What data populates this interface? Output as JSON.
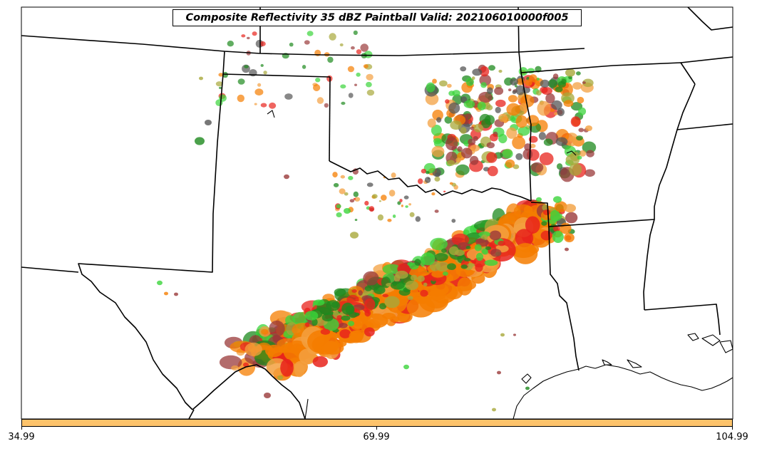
{
  "title": "Composite Reflectivity 35 dBZ Paintball Valid: 202106010000f005",
  "colorbar": {
    "color": "#fdc36b",
    "ticks": [
      "34.99",
      "69.99",
      "104.99"
    ]
  },
  "ensemble_colors": [
    "#e8231c",
    "#f57d00",
    "#a8a83a",
    "#3bd43b",
    "#9a3a3a",
    "#f3a040",
    "#1e8a1e",
    "#555555"
  ]
}
